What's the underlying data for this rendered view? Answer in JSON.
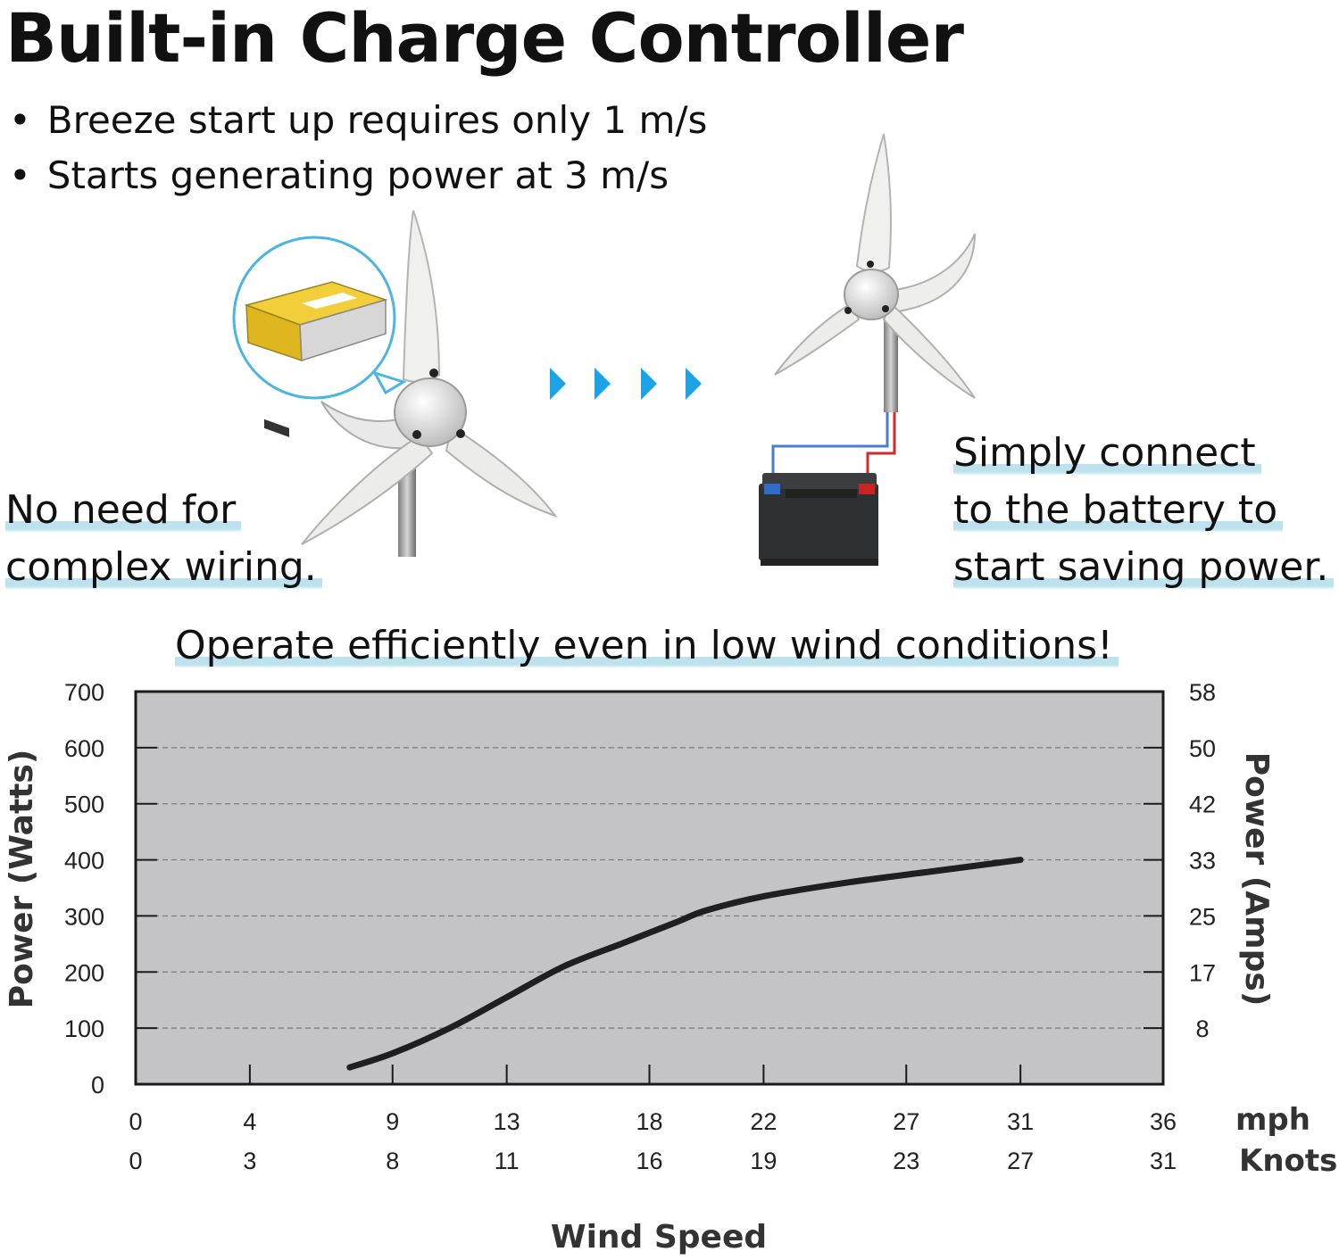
{
  "header": {
    "title": "Built-in Charge Controller",
    "bullets": [
      "Breeze start up requires only 1 m/s",
      "Starts generating power at 3 m/s"
    ]
  },
  "captions": {
    "left": [
      "No need for",
      "complex wiring."
    ],
    "right": [
      "Simply connect",
      "to the battery to",
      "start saving power."
    ]
  },
  "colors": {
    "highlight": "#bde2ee",
    "arrow": "#1ba3e6",
    "plot_bg": "#c4c4c6",
    "curve": "#1f1f1f"
  },
  "icons": [
    "wind-turbine-icon",
    "charge-controller-icon",
    "arrow-right-icon",
    "battery-icon"
  ],
  "chart_data": {
    "type": "line",
    "title": "Operate efficiently even in low wind conditions!",
    "ylabel": "Power (Watts)",
    "ylabel_right": "Power (Amps)",
    "xlabel": "Wind Speed",
    "ylim": [
      0,
      700
    ],
    "xlim": [
      0,
      36
    ],
    "grid": true,
    "y_ticks": [
      0,
      100,
      200,
      300,
      400,
      500,
      600,
      700
    ],
    "y_ticks_right": [
      {
        "value": 100,
        "label": "8"
      },
      {
        "value": 200,
        "label": "17"
      },
      {
        "value": 300,
        "label": "25"
      },
      {
        "value": 400,
        "label": "33"
      },
      {
        "value": 500,
        "label": "42"
      },
      {
        "value": 600,
        "label": "50"
      },
      {
        "value": 700,
        "label": "58"
      }
    ],
    "x_ticks": [
      0,
      4,
      9,
      13,
      18,
      22,
      27,
      31,
      36
    ],
    "x_ticks_knots": [
      0,
      3,
      8,
      11,
      16,
      19,
      23,
      27,
      31
    ],
    "x_unit": "mph",
    "x_unit_secondary": "Knots",
    "series": [
      {
        "x": [
          7.5,
          9.0,
          11.0,
          13.0,
          15.0,
          17.0,
          18.0,
          19.0,
          20.0,
          22.0,
          25.0,
          28.0,
          31.0
        ],
        "y": [
          30,
          55,
          100,
          155,
          210,
          250,
          270,
          290,
          310,
          335,
          360,
          380,
          400
        ]
      }
    ]
  }
}
